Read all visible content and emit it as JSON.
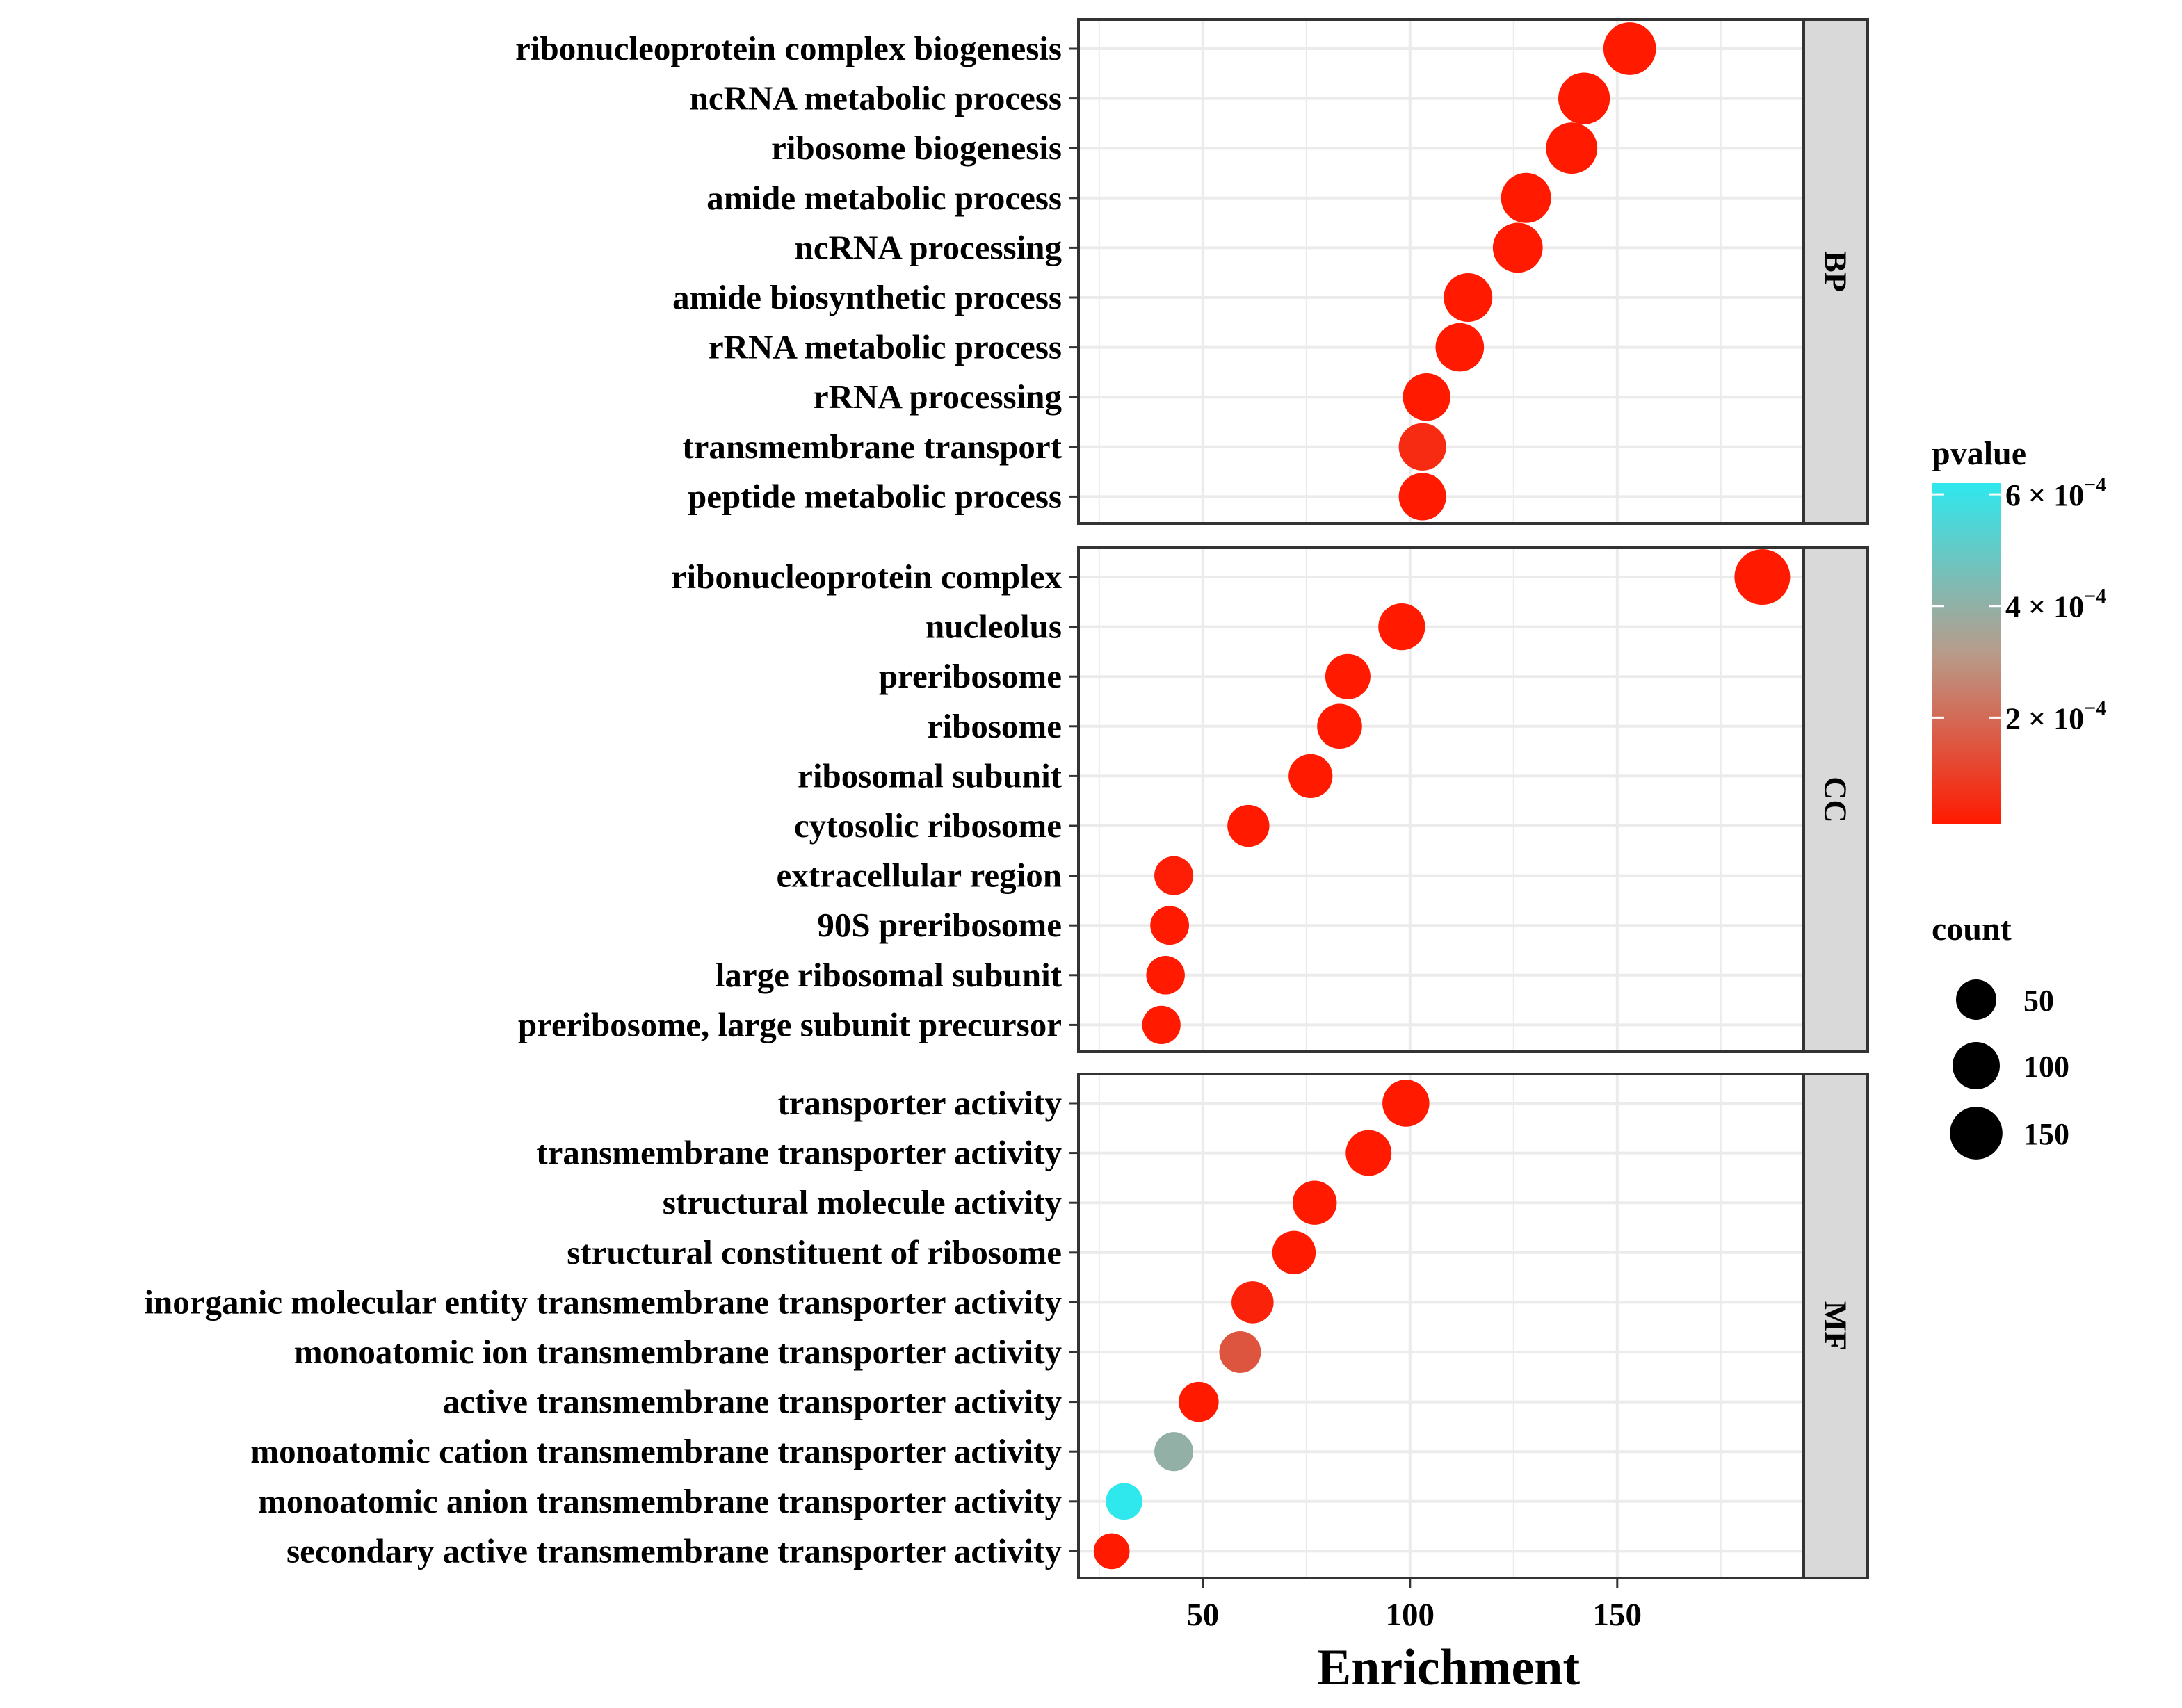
{
  "chart_data": {
    "type": "scatter",
    "subtype": "faceted dot plot (GO enrichment)",
    "xlabel": "Enrichment",
    "ylabel": "",
    "xlim": [
      20,
      195
    ],
    "xticks": [
      50,
      100,
      150
    ],
    "grid": true,
    "colors": {
      "low": "#ff1a00",
      "mid": "#b89b8a",
      "high": "#2ee8ee"
    },
    "facets": [
      {
        "name": "BP",
        "terms": [
          {
            "label": "ribonucleoprotein complex biogenesis",
            "enrichment": 153,
            "count": 150,
            "pvalue": 1e-05
          },
          {
            "label": "ncRNA metabolic process",
            "enrichment": 142,
            "count": 140,
            "pvalue": 1e-05
          },
          {
            "label": "ribosome biogenesis",
            "enrichment": 139,
            "count": 137,
            "pvalue": 1e-05
          },
          {
            "label": "amide metabolic process",
            "enrichment": 128,
            "count": 125,
            "pvalue": 1e-05
          },
          {
            "label": "ncRNA processing",
            "enrichment": 126,
            "count": 123,
            "pvalue": 1e-05
          },
          {
            "label": "amide biosynthetic process",
            "enrichment": 114,
            "count": 112,
            "pvalue": 1e-05
          },
          {
            "label": "rRNA metabolic process",
            "enrichment": 112,
            "count": 110,
            "pvalue": 1e-05
          },
          {
            "label": "rRNA processing",
            "enrichment": 104,
            "count": 102,
            "pvalue": 1e-05
          },
          {
            "label": "transmembrane transport",
            "enrichment": 103,
            "count": 101,
            "pvalue": 5e-05
          },
          {
            "label": "peptide metabolic process",
            "enrichment": 103,
            "count": 101,
            "pvalue": 1e-05
          }
        ]
      },
      {
        "name": "CC",
        "terms": [
          {
            "label": "ribonucleoprotein complex",
            "enrichment": 185,
            "count": 183,
            "pvalue": 1e-05
          },
          {
            "label": "nucleolus",
            "enrichment": 98,
            "count": 96,
            "pvalue": 1e-05
          },
          {
            "label": "preribosome",
            "enrichment": 85,
            "count": 83,
            "pvalue": 1e-05
          },
          {
            "label": "ribosome",
            "enrichment": 83,
            "count": 81,
            "pvalue": 1e-05
          },
          {
            "label": "ribosomal subunit",
            "enrichment": 76,
            "count": 74,
            "pvalue": 1e-05
          },
          {
            "label": "cytosolic ribosome",
            "enrichment": 61,
            "count": 60,
            "pvalue": 1e-05
          },
          {
            "label": "extracellular region",
            "enrichment": 43,
            "count": 42,
            "pvalue": 2e-05
          },
          {
            "label": "90S preribosome",
            "enrichment": 42,
            "count": 41,
            "pvalue": 1e-05
          },
          {
            "label": "large ribosomal subunit",
            "enrichment": 41,
            "count": 40,
            "pvalue": 1e-05
          },
          {
            "label": "preribosome, large subunit precursor",
            "enrichment": 40,
            "count": 39,
            "pvalue": 1e-05
          }
        ]
      },
      {
        "name": "MF",
        "terms": [
          {
            "label": "transporter activity",
            "enrichment": 99,
            "count": 97,
            "pvalue": 1e-05
          },
          {
            "label": "transmembrane transporter activity",
            "enrichment": 90,
            "count": 88,
            "pvalue": 1e-05
          },
          {
            "label": "structural molecule activity",
            "enrichment": 77,
            "count": 75,
            "pvalue": 1e-05
          },
          {
            "label": "structural constituent of ribosome",
            "enrichment": 72,
            "count": 70,
            "pvalue": 1e-05
          },
          {
            "label": "inorganic molecular entity transmembrane transporter activity",
            "enrichment": 62,
            "count": 61,
            "pvalue": 3e-05
          },
          {
            "label": "monoatomic ion transmembrane transporter activity",
            "enrichment": 59,
            "count": 58,
            "pvalue": 0.00015
          },
          {
            "label": "active transmembrane transporter activity",
            "enrichment": 49,
            "count": 48,
            "pvalue": 1e-05
          },
          {
            "label": "monoatomic cation transmembrane transporter activity",
            "enrichment": 43,
            "count": 42,
            "pvalue": 0.0004
          },
          {
            "label": "monoatomic anion transmembrane transporter activity",
            "enrichment": 31,
            "count": 30,
            "pvalue": 0.00062
          },
          {
            "label": "secondary active transmembrane transporter activity",
            "enrichment": 28,
            "count": 27,
            "pvalue": 1e-05
          }
        ]
      }
    ],
    "legend_color": {
      "title": "pvalue",
      "min": 1e-05,
      "max": 0.00062,
      "breaks": [
        {
          "value": 0.0006,
          "mantissa": "6",
          "exponent": "−4"
        },
        {
          "value": 0.0004,
          "mantissa": "4",
          "exponent": "−4"
        },
        {
          "value": 0.0002,
          "mantissa": "2",
          "exponent": "−4"
        }
      ],
      "times_sign": "×",
      "base": "10"
    },
    "legend_size": {
      "title": "count",
      "breaks": [
        50,
        100,
        150
      ]
    }
  }
}
